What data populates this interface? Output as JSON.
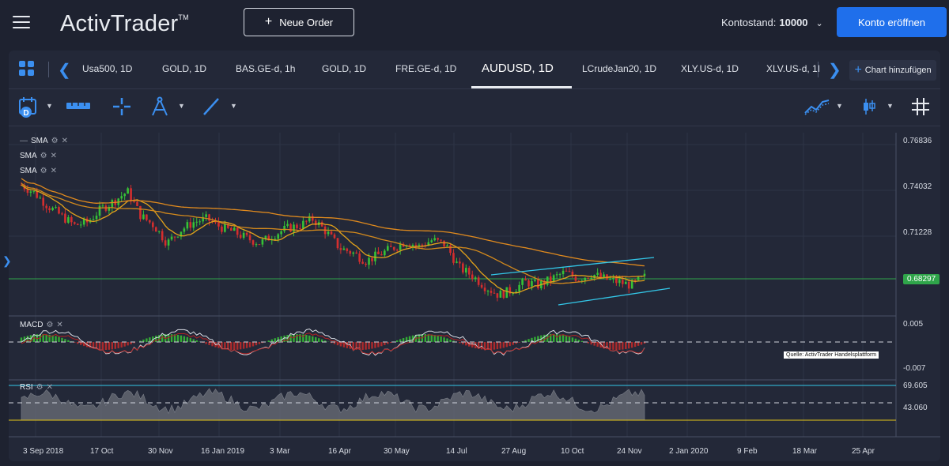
{
  "header": {
    "logo_text": "ActivTrader",
    "logo_tm": "TM",
    "new_order_label": "Neue Order",
    "balance_label": "Kontostand:",
    "balance_value": "10000",
    "open_account_label": "Konto eröffnen"
  },
  "tabs": {
    "items": [
      {
        "label": "Usa500, 1D"
      },
      {
        "label": "GOLD, 1D"
      },
      {
        "label": "BAS.GE-d, 1h"
      },
      {
        "label": "GOLD, 1D"
      },
      {
        "label": "FRE.GE-d, 1D"
      },
      {
        "label": "AUDUSD, 1D"
      },
      {
        "label": "LCrudeJan20, 1D"
      },
      {
        "label": "XLY.US-d, 1D"
      },
      {
        "label": "XLV.US-d, 1I"
      }
    ],
    "active_index": 5,
    "add_chart_label": "Chart hinzufügen"
  },
  "toolbar": {
    "icons": [
      "calendar-d-icon",
      "ruler-icon",
      "crosshair-icon",
      "drawing-compass-icon",
      "trendline-icon",
      "chart-style-icon",
      "candlestick-icon",
      "grid-hash-icon"
    ]
  },
  "indicators": {
    "sma": [
      "SMA",
      "SMA",
      "SMA"
    ],
    "macd": "MACD",
    "rsi": "RSI"
  },
  "colors": {
    "accent": "#1f6feb",
    "up_candle": "#36c236",
    "down_candle": "#d42e2e",
    "sma_fast": "#e3a21a",
    "sma_slow": "#e08a1e",
    "channel": "#33c7e8",
    "hline": "#2fa54a",
    "rsi_line_top": "#33c7e8",
    "rsi_line_bottom": "#e6c619"
  },
  "chart_data": {
    "type": "candlestick",
    "symbol": "AUDUSD",
    "timeframe": "1D",
    "price_axis_labels": [
      "0.76836",
      "0.74032",
      "0.71228",
      "0.68297"
    ],
    "last_price": "0.68297",
    "macd_axis_labels": [
      "0.005",
      "-0.007"
    ],
    "rsi_axis_labels": [
      "69.605",
      "43.060"
    ],
    "time_labels": [
      "3 Sep 2018",
      "17 Oct",
      "30 Nov",
      "16 Jan 2019",
      "3 Mar",
      "16 Apr",
      "30 May",
      "14 Jul",
      "27 Aug",
      "10 Oct",
      "24 Nov",
      "2 Jan 2020",
      "9 Feb",
      "18 Mar",
      "25 Apr"
    ],
    "source_note": "Quelle: ActivTrader Handelsplattform",
    "close_path_approx": [
      0.741,
      0.736,
      0.728,
      0.722,
      0.716,
      0.718,
      0.726,
      0.731,
      0.737,
      0.722,
      0.716,
      0.705,
      0.713,
      0.718,
      0.72,
      0.715,
      0.712,
      0.708,
      0.705,
      0.71,
      0.714,
      0.716,
      0.72,
      0.712,
      0.702,
      0.699,
      0.694,
      0.698,
      0.702,
      0.706,
      0.703,
      0.707,
      0.704,
      0.69,
      0.685,
      0.678,
      0.673,
      0.676,
      0.681,
      0.679,
      0.683,
      0.687,
      0.683,
      0.686,
      0.683,
      0.681,
      0.679,
      0.684
    ]
  }
}
